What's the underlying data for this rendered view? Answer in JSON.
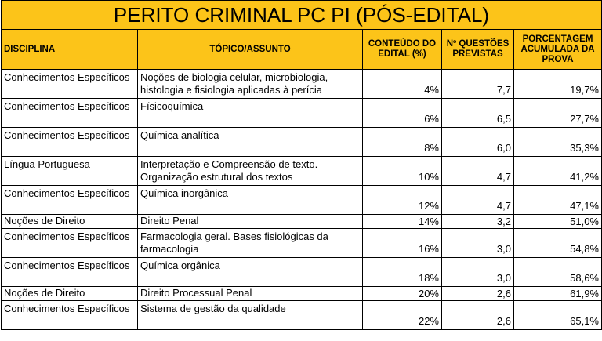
{
  "header": {
    "title": "PERITO CRIMINAL PC PI (PÓS-EDITAL)"
  },
  "table": {
    "columns": [
      "DISCIPLINA",
      "TÓPICO/ASSUNTO",
      "CONTEÚDO DO EDITAL (%)",
      "Nº QUESTÕES PREVISTAS",
      "PORCENTAGEM ACUMULADA DA PROVA"
    ],
    "rows": [
      [
        "Conhecimentos Específicos",
        "Noções de biologia celular, microbiologia, histologia e fisiologia aplicadas à perícia",
        "4%",
        "7,7",
        "19,7%"
      ],
      [
        "Conhecimentos Específicos",
        "Físicoquímica",
        "6%",
        "6,5",
        "27,7%"
      ],
      [
        "Conhecimentos Específicos",
        "Química analítica",
        "8%",
        "6,0",
        "35,3%"
      ],
      [
        "Língua Portuguesa",
        "Interpretação e Compreensão de texto. Organização estrutural dos textos",
        "10%",
        "4,7",
        "41,2%"
      ],
      [
        "Conhecimentos Específicos",
        "Química inorgânica",
        "12%",
        "4,7",
        "47,1%"
      ],
      [
        "Noções de Direito",
        "Direito Penal",
        "14%",
        "3,2",
        "51,0%"
      ],
      [
        "Conhecimentos Específicos",
        "Farmacologia geral. Bases fisiológicas da farmacologia",
        "16%",
        "3,0",
        "54,8%"
      ],
      [
        "Conhecimentos Específicos",
        "Química orgânica",
        "18%",
        "3,0",
        "58,6%"
      ],
      [
        "Noções de Direito",
        "Direito Processual Penal",
        "20%",
        "2,6",
        "61,9%"
      ],
      [
        "Conhecimentos Específicos",
        "Sistema de gestão da qualidade",
        "22%",
        "2,6",
        "65,1%"
      ]
    ]
  }
}
